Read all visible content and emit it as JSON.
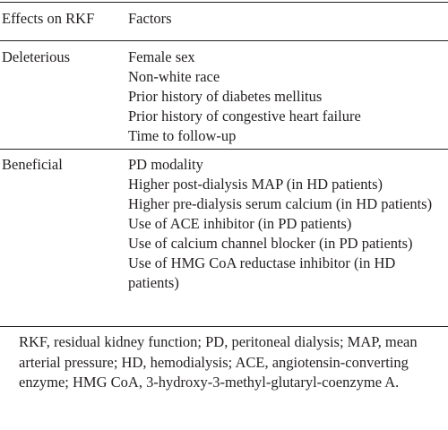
{
  "table": {
    "headers": [
      "Effects on RKF",
      "Factors"
    ],
    "rows": [
      {
        "effect": "Deleterious",
        "factors": [
          "Female sex",
          "Non-white race",
          "Prior history of diabetes mellitus",
          "Prior history of congestive heart failure",
          "Time to follow-up"
        ]
      },
      {
        "effect": "Beneficial",
        "factors": [
          "PD modality",
          "Higher post-dialysis MAP (in HD patients)",
          "Higher pre-dialysis serum calcium (in HD patients)",
          "Use of ACE inhibitor (in PD patients)",
          "Use of calcium channel blocker (in PD patients)",
          "Use of HMG CoA reductase inhibitor (in HD patients)"
        ]
      }
    ]
  },
  "footnote": "RKF, residual kidney function; PD, peritoneal dialysis; MAP, mean arterial pressure; HD, hemodialysis; ACE, angiotensin-converting enzyme; HMG CoA, 3-hydroxy-3-methyl-glutaryl-coenzyme A."
}
